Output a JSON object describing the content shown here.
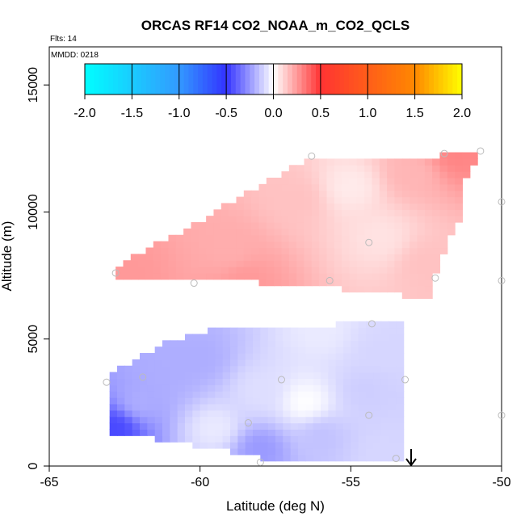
{
  "chart_data": {
    "type": "heatmap",
    "title": "ORCAS RF14 CO2_NOAA_m_CO2_QCLS",
    "flights_label": "Flts: 14",
    "date_label": "MMDD: 0218",
    "xlabel": "Latitude (deg N)",
    "ylabel": "Altitude (m)",
    "xlim": [
      -65,
      -50
    ],
    "ylim": [
      0,
      16500
    ],
    "x_ticks": [
      -65,
      -60,
      -55,
      -50
    ],
    "y_ticks": [
      0,
      5000,
      10000,
      15000
    ],
    "colorbar": {
      "ticks": [
        -2.0,
        -1.5,
        -1.0,
        -0.5,
        0.0,
        0.5,
        1.0,
        1.5,
        2.0
      ],
      "range": [
        -2.0,
        2.0
      ],
      "colors": {
        "neg_far": "#00ffff",
        "neg_mid": "#3399ff",
        "neg_near": "#3333ff",
        "zero": "#ffffff",
        "pos_near": "#ff3333",
        "pos_mid": "#ff8800",
        "pos_far": "#ffff00"
      }
    },
    "regions": [
      {
        "name": "upper",
        "polygon": [
          [
            -62.8,
            7600
          ],
          [
            -62.3,
            8200
          ],
          [
            -61.0,
            9000
          ],
          [
            -59.5,
            10000
          ],
          [
            -58.0,
            11100
          ],
          [
            -56.2,
            12200
          ],
          [
            -52.0,
            12200
          ],
          [
            -51.9,
            12400
          ],
          [
            -50.6,
            12400
          ],
          [
            -51.2,
            11200
          ],
          [
            -51.3,
            10000
          ],
          [
            -51.9,
            8500
          ],
          [
            -52.2,
            7400
          ],
          [
            -52.3,
            6600
          ],
          [
            -55.5,
            7000
          ],
          [
            -59.0,
            7300
          ],
          [
            -62.8,
            7300
          ]
        ],
        "field": [
          {
            "lat": -62.5,
            "alt": 7600,
            "value": 0.25
          },
          {
            "lat": -59.0,
            "alt": 8500,
            "value": 0.2
          },
          {
            "lat": -56.8,
            "alt": 10500,
            "value": 0.15
          },
          {
            "lat": -55.0,
            "alt": 11000,
            "value": 0.05
          },
          {
            "lat": -54.0,
            "alt": 9000,
            "value": 0.07
          },
          {
            "lat": -53.0,
            "alt": 11500,
            "value": 0.18
          },
          {
            "lat": -51.5,
            "alt": 12300,
            "value": 0.3
          },
          {
            "lat": -52.5,
            "alt": 8000,
            "value": 0.15
          },
          {
            "lat": -58.5,
            "alt": 7300,
            "value": 0.25
          }
        ]
      },
      {
        "name": "lower",
        "polygon": [
          [
            -63.0,
            1300
          ],
          [
            -63.0,
            3600
          ],
          [
            -62.0,
            4300
          ],
          [
            -61.0,
            4900
          ],
          [
            -60.0,
            5300
          ],
          [
            -57.0,
            5500
          ],
          [
            -55.0,
            5600
          ],
          [
            -53.2,
            5700
          ],
          [
            -53.2,
            1500
          ],
          [
            -53.3,
            300
          ],
          [
            -57.5,
            200
          ],
          [
            -59.0,
            600
          ],
          [
            -61.2,
            1000
          ],
          [
            -62.5,
            1300
          ]
        ],
        "field": [
          {
            "lat": -62.8,
            "alt": 1500,
            "value": -0.45
          },
          {
            "lat": -62.0,
            "alt": 2500,
            "value": -0.2
          },
          {
            "lat": -61.0,
            "alt": 3800,
            "value": -0.2
          },
          {
            "lat": -60.0,
            "alt": 4200,
            "value": -0.2
          },
          {
            "lat": -58.0,
            "alt": 3000,
            "value": -0.08
          },
          {
            "lat": -59.5,
            "alt": 1500,
            "value": -0.05
          },
          {
            "lat": -58.0,
            "alt": 700,
            "value": -0.25
          },
          {
            "lat": -56.0,
            "alt": 1200,
            "value": -0.15
          },
          {
            "lat": -56.5,
            "alt": 2500,
            "value": 0.0
          },
          {
            "lat": -54.5,
            "alt": 3000,
            "value": -0.12
          },
          {
            "lat": -54.0,
            "alt": 4500,
            "value": -0.1
          },
          {
            "lat": -56.0,
            "alt": 5300,
            "value": -0.05
          },
          {
            "lat": -54.0,
            "alt": 500,
            "value": -0.1
          }
        ]
      }
    ],
    "sample_points": [
      {
        "lat": -62.8,
        "alt": 7600
      },
      {
        "lat": -60.2,
        "alt": 7200
      },
      {
        "lat": -56.3,
        "alt": 12200
      },
      {
        "lat": -55.7,
        "alt": 7300
      },
      {
        "lat": -54.4,
        "alt": 8800
      },
      {
        "lat": -52.2,
        "alt": 7400
      },
      {
        "lat": -51.9,
        "alt": 12300
      },
      {
        "lat": -50.7,
        "alt": 12400
      },
      {
        "lat": -50.0,
        "alt": 10400
      },
      {
        "lat": -50.0,
        "alt": 7300
      },
      {
        "lat": -54.3,
        "alt": 5600
      },
      {
        "lat": -63.1,
        "alt": 3300
      },
      {
        "lat": -61.9,
        "alt": 3500
      },
      {
        "lat": -57.3,
        "alt": 3400
      },
      {
        "lat": -53.2,
        "alt": 3400
      },
      {
        "lat": -58.4,
        "alt": 1700
      },
      {
        "lat": -54.4,
        "alt": 2000
      },
      {
        "lat": -50.0,
        "alt": 2000
      },
      {
        "lat": -53.5,
        "alt": 300
      },
      {
        "lat": -58.0,
        "alt": 150
      }
    ],
    "arrow_latitude": -53.0
  }
}
